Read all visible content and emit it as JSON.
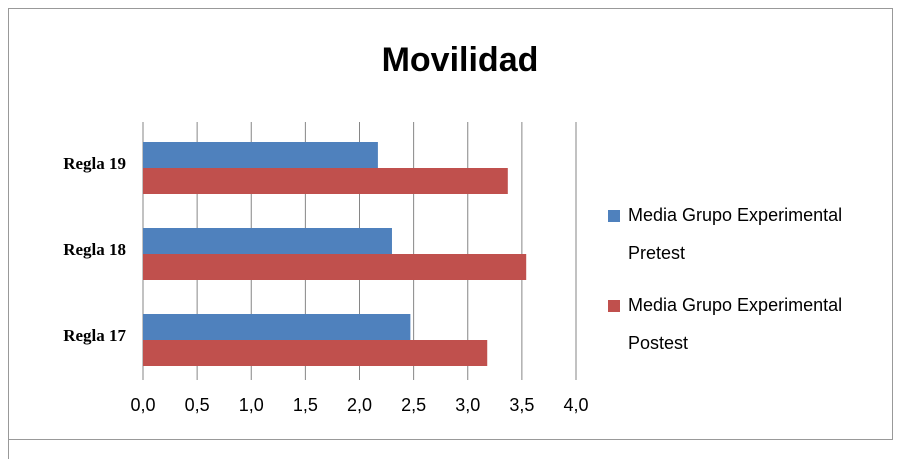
{
  "chart_data": {
    "type": "barh",
    "title": "Movilidad",
    "categories": [
      "Regla 17",
      "Regla 18",
      "Regla 19"
    ],
    "series": [
      {
        "name": "Media Grupo Experimental Pretest",
        "color": "#4f81bd",
        "values": [
          2.47,
          2.3,
          2.17
        ]
      },
      {
        "name": "Media Grupo Experimental Postest",
        "color": "#c0504d",
        "values": [
          3.18,
          3.54,
          3.37
        ]
      }
    ],
    "xlim": [
      0,
      4
    ],
    "xticks": [
      {
        "value": 0,
        "label": "0,0"
      },
      {
        "value": 0.5,
        "label": "0,5"
      },
      {
        "value": 1,
        "label": "1,0"
      },
      {
        "value": 1.5,
        "label": "1,5"
      },
      {
        "value": 2,
        "label": "2,0"
      },
      {
        "value": 2.5,
        "label": "2,5"
      },
      {
        "value": 3,
        "label": "3,0"
      },
      {
        "value": 3.5,
        "label": "3,5"
      },
      {
        "value": 4,
        "label": "4,0"
      }
    ],
    "grid": true,
    "legend": "right"
  }
}
